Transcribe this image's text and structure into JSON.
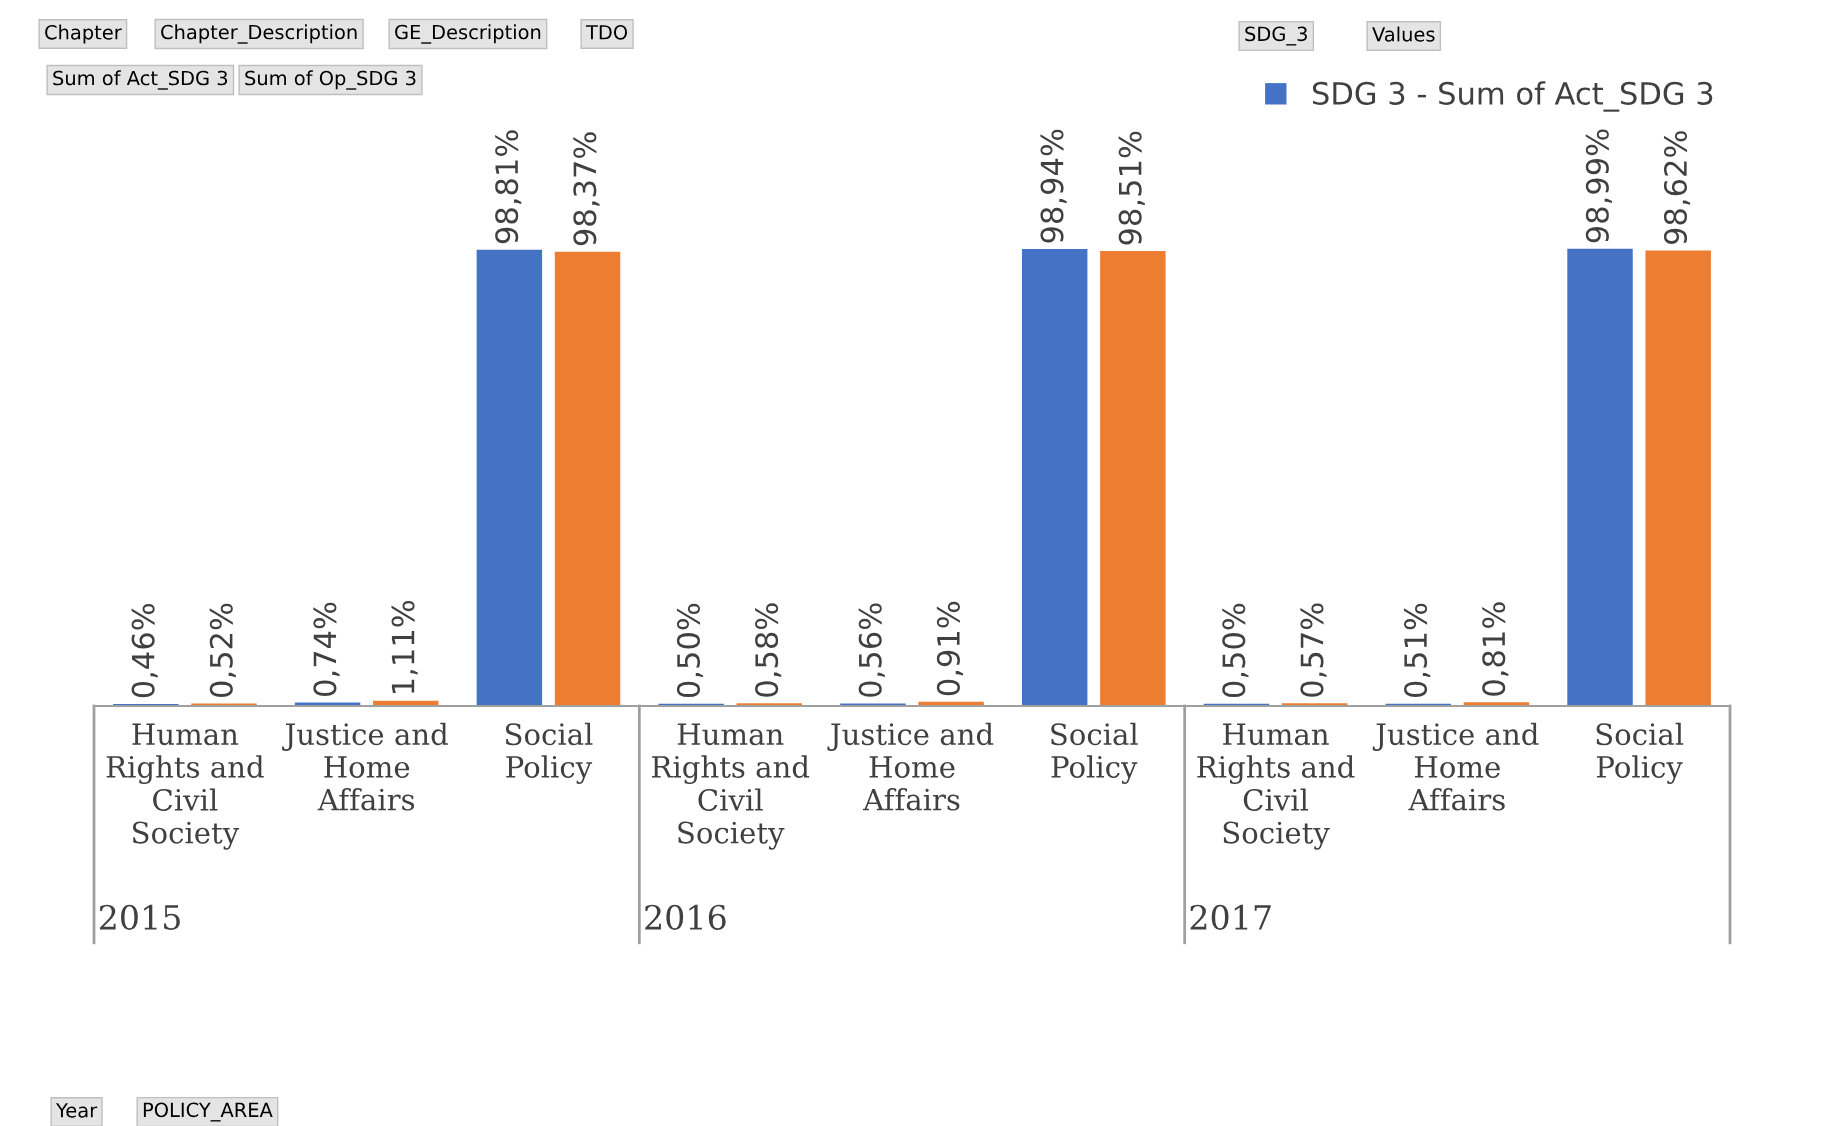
{
  "chart_data": {
    "type": "bar",
    "categories": [
      "Human Rights and Civil Society",
      "Justice and Home Affairs",
      "Social Policy",
      "Human Rights and Civil Society",
      "Justice and Home Affairs",
      "Social Policy",
      "Human Rights and Civil Society",
      "Justice and Home Affairs",
      "Social Policy"
    ],
    "series": [
      {
        "name": "SDG 3 - Sum of Act_SDG 3",
        "color": "#4472c4",
        "values": [
          0.46,
          0.74,
          98.81,
          0.5,
          0.56,
          98.94,
          0.5,
          0.51,
          98.99
        ],
        "value_labels": [
          "0,46%",
          "0,74%",
          "98,81%",
          "0,50%",
          "0,56%",
          "98,94%",
          "0,50%",
          "0,51%",
          "98,99%"
        ]
      },
      {
        "color": "#ed7d31",
        "values": [
          0.52,
          1.11,
          98.37,
          0.58,
          0.91,
          98.51,
          0.57,
          0.81,
          98.62
        ],
        "value_labels": [
          "0,52%",
          "1,11%",
          "98,37%",
          "0,58%",
          "0,91%",
          "98,51%",
          "0,57%",
          "0,81%",
          "98,62%"
        ]
      }
    ],
    "annotations": [
      "2015",
      "2016",
      "2017",
      "Chapter",
      "Chapter_Description",
      "GE_Description",
      "TDO",
      "SDG_3",
      "Values",
      "Sum of Act_SDG 3",
      "Sum of Op_SDG 3",
      "Year",
      "POLICY_AREA"
    ],
    "legend": "top right",
    "grid": false
  }
}
